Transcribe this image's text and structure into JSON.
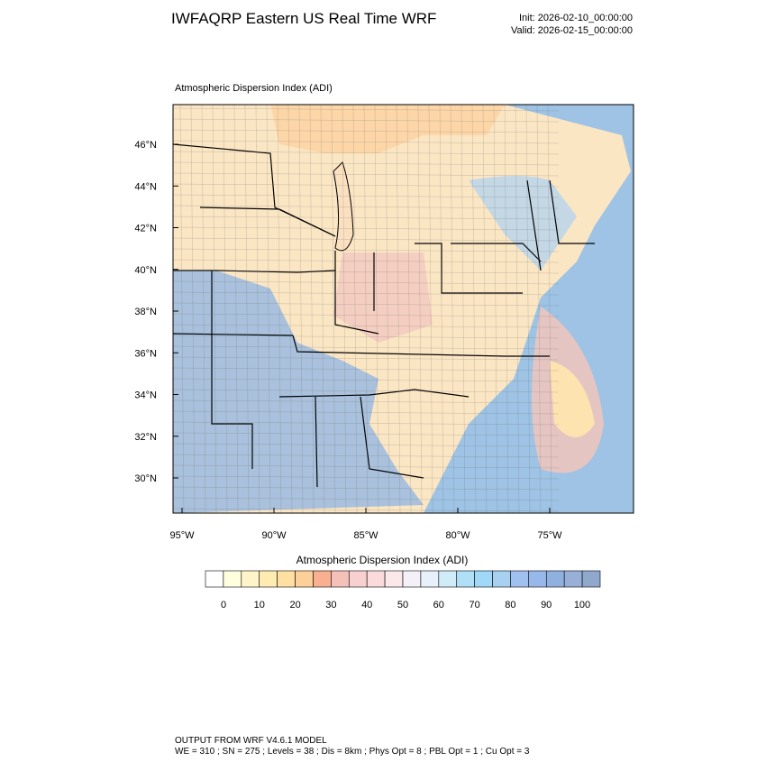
{
  "header": {
    "title": "IWFAQRP Eastern US Real Time WRF",
    "init": "Init: 2026-02-10_00:00:00",
    "valid": "Valid: 2026-02-15_00:00:00"
  },
  "map": {
    "label": "Atmospheric Dispersion Index   (ADI)",
    "lat_labels": [
      "46°N",
      "44°N",
      "42°N",
      "40°N",
      "38°N",
      "36°N",
      "34°N",
      "32°N",
      "30°N"
    ],
    "lon_labels": [
      "95°W",
      "90°W",
      "85°W",
      "80°W",
      "75°W"
    ]
  },
  "colorbar": {
    "title": "Atmospheric Dispersion Index  (ADI)",
    "labels": [
      0,
      10,
      20,
      30,
      40,
      50,
      60,
      70,
      80,
      90,
      100
    ],
    "colors": [
      "#ffffff",
      "#ffffe0",
      "#fff5c8",
      "#ffecb0",
      "#ffe0a0",
      "#fdd09a",
      "#f8b090",
      "#f4c0b8",
      "#f8d0d0",
      "#fadada",
      "#fce8e8",
      "#f4f0f8",
      "#e8f0fc",
      "#d0ecf8",
      "#b0e0f8",
      "#a0d8f8",
      "#a8d0f0",
      "#a0c0f0",
      "#98b8ec",
      "#90b0e0",
      "#98b0d8",
      "#90a8cc"
    ]
  },
  "footer": {
    "line1": "OUTPUT FROM WRF V4.6.1 MODEL",
    "line2": "WE = 310 ; SN = 275 ; Levels = 38 ; Dis = 8km ; Phys Opt = 8 ; PBL Opt = 1 ; Cu Opt = 3"
  }
}
